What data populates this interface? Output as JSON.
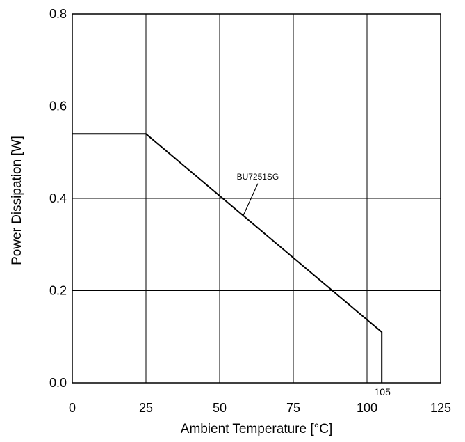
{
  "chart_data": {
    "type": "line",
    "title": "",
    "xlabel": "Ambient Temperature [°C]",
    "ylabel": "Power Dissipation [W]",
    "xlim": [
      0,
      125
    ],
    "ylim": [
      0,
      0.8
    ],
    "x_ticks": [
      0,
      25,
      50,
      75,
      100,
      125
    ],
    "x_tick_labels": [
      "0",
      "25",
      "50",
      "75",
      "100",
      "125"
    ],
    "y_ticks": [
      0,
      0.2,
      0.4,
      0.6,
      0.8
    ],
    "y_tick_labels": [
      "0.0",
      "0.2",
      "0.4",
      "0.6",
      "0.8"
    ],
    "grid": true,
    "series": [
      {
        "name": "BU7251SG",
        "x": [
          0,
          25,
          105,
          105
        ],
        "y": [
          0.54,
          0.54,
          0.11,
          0
        ]
      }
    ],
    "annotations": [
      {
        "text": "105",
        "x": 105,
        "y": 0
      }
    ]
  }
}
